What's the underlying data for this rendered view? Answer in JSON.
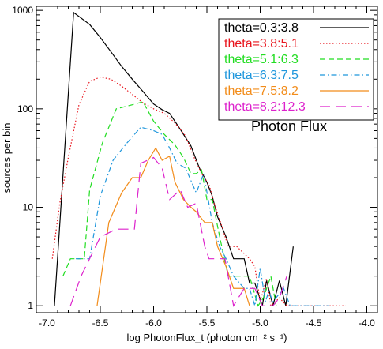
{
  "chart_data": {
    "type": "line",
    "title": "",
    "xlabel": "log PhotonFlux_t  (photon cm⁻² s⁻¹)",
    "ylabel": "sources per bin",
    "annotation": "Photon Flux",
    "xlim": [
      -7.1,
      -3.9
    ],
    "ylim": [
      0.85,
      1100
    ],
    "yscale": "log",
    "x_ticks": [
      -7.0,
      -6.5,
      -6.0,
      -5.5,
      -5.0,
      -4.5,
      -4.0
    ],
    "x_tick_labels": [
      "-7.0",
      "-6.5",
      "-6.0",
      "-5.5",
      "-5.0",
      "-4.5",
      "-4.0"
    ],
    "y_ticks": [
      1,
      10,
      100,
      1000
    ],
    "y_tick_labels": [
      "1",
      "10",
      "100",
      "1000"
    ],
    "legend_position": "top-right",
    "series": [
      {
        "name": "theta=0.3:3.8",
        "color": "#000000",
        "dash": "solid",
        "points": [
          [
            -6.93,
            1
          ],
          [
            -6.75,
            950
          ],
          [
            -6.6,
            720
          ],
          [
            -6.5,
            530
          ],
          [
            -6.4,
            380
          ],
          [
            -6.3,
            270
          ],
          [
            -6.2,
            200
          ],
          [
            -6.1,
            150
          ],
          [
            -6.0,
            112
          ],
          [
            -5.92,
            98
          ],
          [
            -5.85,
            90
          ],
          [
            -5.75,
            62
          ],
          [
            -5.65,
            42
          ],
          [
            -5.57,
            25
          ],
          [
            -5.5,
            18
          ],
          [
            -5.45,
            13
          ],
          [
            -5.4,
            8
          ],
          [
            -5.32,
            5
          ],
          [
            -5.25,
            3
          ],
          [
            -5.15,
            3
          ],
          [
            -5.1,
            1.7
          ],
          [
            -5.05,
            1.7
          ],
          [
            -4.98,
            1
          ],
          [
            -4.94,
            1.8
          ],
          [
            -4.88,
            1
          ],
          [
            -4.82,
            1.8
          ],
          [
            -4.76,
            1
          ],
          [
            -4.69,
            4
          ]
        ]
      },
      {
        "name": "theta=3.8:5.1",
        "color": "#e8141c",
        "dash": "dotted",
        "points": [
          [
            -6.95,
            3
          ],
          [
            -6.88,
            11
          ],
          [
            -6.8,
            32
          ],
          [
            -6.7,
            110
          ],
          [
            -6.6,
            190
          ],
          [
            -6.5,
            210
          ],
          [
            -6.4,
            200
          ],
          [
            -6.3,
            170
          ],
          [
            -6.2,
            140
          ],
          [
            -6.1,
            115
          ],
          [
            -6.0,
            100
          ],
          [
            -5.9,
            90
          ],
          [
            -5.8,
            72
          ],
          [
            -5.7,
            53
          ],
          [
            -5.62,
            32
          ],
          [
            -5.55,
            22
          ],
          [
            -5.48,
            17
          ],
          [
            -5.42,
            10
          ],
          [
            -5.38,
            7.5
          ],
          [
            -5.3,
            4
          ],
          [
            -5.22,
            4
          ],
          [
            -5.1,
            3
          ],
          [
            -5.05,
            2.5
          ],
          [
            -5.0,
            1.1
          ],
          [
            -4.94,
            1.9
          ],
          [
            -4.9,
            1
          ],
          [
            -4.82,
            1.2
          ],
          [
            -4.75,
            1
          ],
          [
            -4.2,
            1
          ]
        ]
      },
      {
        "name": "theta=5.1:6.3",
        "color": "#22dd22",
        "dash": "dashed",
        "points": [
          [
            -6.85,
            2
          ],
          [
            -6.78,
            3
          ],
          [
            -6.65,
            3
          ],
          [
            -6.6,
            15
          ],
          [
            -6.48,
            45
          ],
          [
            -6.35,
            100
          ],
          [
            -6.2,
            110
          ],
          [
            -6.1,
            118
          ],
          [
            -6.0,
            75
          ],
          [
            -5.9,
            55
          ],
          [
            -5.8,
            43
          ],
          [
            -5.72,
            32
          ],
          [
            -5.65,
            22
          ],
          [
            -5.6,
            22
          ],
          [
            -5.55,
            24
          ],
          [
            -5.5,
            12
          ],
          [
            -5.45,
            12
          ],
          [
            -5.38,
            5
          ],
          [
            -5.3,
            2
          ],
          [
            -5.2,
            2
          ],
          [
            -5.1,
            2
          ],
          [
            -5.02,
            1
          ],
          [
            -4.97,
            1.2
          ],
          [
            -4.9,
            2
          ],
          [
            -4.85,
            1
          ]
        ]
      },
      {
        "name": "theta=6.3:7.5",
        "color": "#1e96dc",
        "dash": "dashdot",
        "points": [
          [
            -6.73,
            3
          ],
          [
            -6.6,
            3
          ],
          [
            -6.5,
            13
          ],
          [
            -6.38,
            30
          ],
          [
            -6.25,
            45
          ],
          [
            -6.12,
            65
          ],
          [
            -6.0,
            60
          ],
          [
            -5.92,
            55
          ],
          [
            -5.85,
            40
          ],
          [
            -5.78,
            28
          ],
          [
            -5.7,
            25
          ],
          [
            -5.6,
            14
          ],
          [
            -5.53,
            22
          ],
          [
            -5.45,
            7
          ],
          [
            -5.38,
            4
          ],
          [
            -5.32,
            3
          ],
          [
            -5.25,
            2
          ],
          [
            -5.15,
            1.5
          ],
          [
            -5.1,
            1.5
          ],
          [
            -5.05,
            1
          ],
          [
            -5.0,
            2.4
          ],
          [
            -4.95,
            1.1
          ],
          [
            -4.92,
            1.4
          ],
          [
            -4.88,
            1.1
          ],
          [
            -4.78,
            1.5
          ],
          [
            -4.72,
            1
          ],
          [
            -4.35,
            1
          ]
        ]
      },
      {
        "name": "theta=7.5:8.2",
        "color": "#f28c1a",
        "dash": "solid",
        "points": [
          [
            -6.53,
            1
          ],
          [
            -6.42,
            7
          ],
          [
            -6.3,
            14
          ],
          [
            -6.2,
            20
          ],
          [
            -6.12,
            20
          ],
          [
            -6.05,
            30
          ],
          [
            -5.98,
            40
          ],
          [
            -5.92,
            30
          ],
          [
            -5.85,
            33
          ],
          [
            -5.8,
            18
          ],
          [
            -5.72,
            12
          ],
          [
            -5.65,
            10
          ],
          [
            -5.6,
            9
          ],
          [
            -5.52,
            7
          ],
          [
            -5.45,
            7
          ],
          [
            -5.4,
            4
          ],
          [
            -5.32,
            2.5
          ],
          [
            -5.25,
            1.5
          ],
          [
            -5.15,
            1.5
          ],
          [
            -5.1,
            1
          ]
        ]
      },
      {
        "name": "theta=8.2:12.3",
        "color": "#dd22cc",
        "dash": "longdash",
        "points": [
          [
            -6.78,
            1
          ],
          [
            -6.68,
            2
          ],
          [
            -6.5,
            5
          ],
          [
            -6.35,
            6
          ],
          [
            -6.18,
            6
          ],
          [
            -6.12,
            28
          ],
          [
            -6.0,
            32
          ],
          [
            -5.92,
            25
          ],
          [
            -5.85,
            12
          ],
          [
            -5.75,
            15
          ],
          [
            -5.68,
            10
          ],
          [
            -5.6,
            11
          ],
          [
            -5.52,
            4
          ],
          [
            -5.48,
            3
          ],
          [
            -5.4,
            3
          ],
          [
            -5.33,
            3
          ],
          [
            -5.25,
            1
          ],
          [
            -5.15,
            1.5
          ],
          [
            -5.05,
            1.5
          ],
          [
            -4.98,
            1
          ],
          [
            -4.88,
            1
          ],
          [
            -4.82,
            1.2
          ],
          [
            -4.75,
            2
          ]
        ]
      }
    ]
  }
}
